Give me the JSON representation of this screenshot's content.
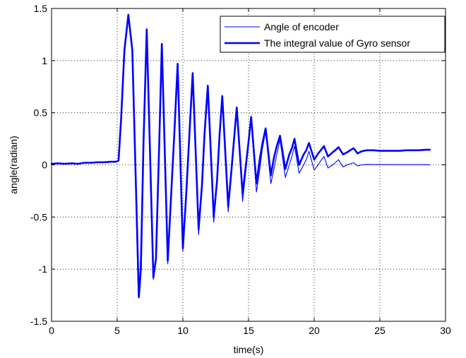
{
  "chart_data": {
    "type": "line",
    "title": "",
    "xlabel": "time(s)",
    "ylabel": "angle(radian)",
    "xlim": [
      0,
      30
    ],
    "ylim": [
      -1.5,
      1.5
    ],
    "xticks": [
      0,
      5,
      10,
      15,
      20,
      25,
      30
    ],
    "yticks": [
      -1.5,
      -1,
      -0.5,
      0,
      0.5,
      1,
      1.5
    ],
    "xtick_labels": [
      "0",
      "5",
      "10",
      "15",
      "20",
      "25",
      "30"
    ],
    "ytick_labels": [
      "-1.5",
      "-1",
      "-0.5",
      "0",
      "0.5",
      "1",
      "1.5"
    ],
    "grid": true,
    "grid_style": "dotted",
    "legend_position": "top-right",
    "series": [
      {
        "name": "Angle of encoder",
        "color": "#0000ff",
        "line": "thin",
        "x": [
          0.0,
          0.5,
          1.0,
          1.5,
          2.0,
          2.5,
          3.0,
          3.5,
          4.0,
          4.5,
          4.9,
          5.1,
          5.3,
          5.55,
          5.85,
          6.15,
          6.6,
          6.75,
          7.0,
          7.25,
          7.75,
          7.95,
          8.2,
          8.4,
          8.85,
          9.1,
          9.35,
          9.6,
          10.0,
          10.25,
          10.5,
          10.75,
          11.2,
          11.45,
          11.65,
          11.9,
          12.35,
          12.6,
          12.8,
          13.0,
          13.45,
          13.7,
          13.9,
          14.1,
          14.55,
          14.8,
          15.0,
          15.2,
          15.6,
          15.85,
          16.05,
          16.3,
          16.7,
          16.95,
          17.15,
          17.4,
          17.8,
          18.1,
          18.3,
          18.5,
          18.85,
          19.2,
          19.4,
          19.6,
          20.0,
          20.3,
          20.5,
          20.75,
          21.05,
          21.4,
          21.6,
          21.85,
          22.2,
          22.5,
          22.75,
          23.0,
          23.3,
          23.6,
          24.0,
          24.5,
          25.0,
          25.5,
          26.0,
          27.0,
          28.0,
          28.8
        ],
        "y": [
          0.01,
          0.015,
          0.01,
          0.015,
          0.01,
          0.02,
          0.02,
          0.025,
          0.025,
          0.03,
          0.03,
          0.04,
          0.4,
          1.05,
          1.42,
          1.1,
          -1.26,
          -1.0,
          0.2,
          1.28,
          -1.1,
          -0.9,
          0.2,
          1.15,
          -0.95,
          -0.3,
          0.3,
          0.97,
          -0.83,
          -0.3,
          0.3,
          0.87,
          -0.67,
          -0.2,
          0.3,
          0.75,
          -0.55,
          -0.15,
          0.25,
          0.65,
          -0.45,
          -0.1,
          0.2,
          0.53,
          -0.35,
          -0.05,
          0.2,
          0.42,
          -0.26,
          -0.05,
          0.15,
          0.32,
          -0.18,
          -0.03,
          0.1,
          0.24,
          -0.12,
          0.0,
          0.08,
          0.18,
          -0.08,
          0.0,
          0.05,
          0.13,
          -0.05,
          0.0,
          0.04,
          0.08,
          -0.03,
          0.0,
          0.02,
          0.05,
          -0.02,
          0.0,
          0.01,
          0.02,
          -0.01,
          0.0,
          0.005,
          0.003,
          0.003,
          0.003,
          0.002,
          0.002,
          0.002,
          0.002
        ]
      },
      {
        "name": "The integral value of Gyro sensor",
        "color": "#0000ff",
        "line": "thick",
        "x": [
          0.0,
          0.5,
          1.0,
          1.5,
          2.0,
          2.5,
          3.0,
          3.5,
          4.0,
          4.5,
          4.9,
          5.1,
          5.3,
          5.55,
          5.85,
          6.15,
          6.65,
          6.8,
          7.0,
          7.25,
          7.75,
          7.95,
          8.2,
          8.4,
          8.85,
          9.1,
          9.35,
          9.6,
          10.0,
          10.25,
          10.5,
          10.75,
          11.2,
          11.45,
          11.65,
          11.9,
          12.35,
          12.6,
          12.8,
          13.0,
          13.45,
          13.7,
          13.9,
          14.1,
          14.55,
          14.8,
          15.0,
          15.2,
          15.6,
          15.85,
          16.05,
          16.3,
          16.7,
          16.95,
          17.15,
          17.4,
          17.8,
          18.1,
          18.3,
          18.5,
          18.85,
          19.2,
          19.4,
          19.6,
          20.0,
          20.3,
          20.5,
          20.75,
          21.05,
          21.4,
          21.6,
          21.85,
          22.2,
          22.5,
          22.75,
          23.0,
          23.3,
          23.6,
          24.0,
          24.5,
          25.0,
          25.5,
          26.0,
          26.5,
          27.0,
          27.5,
          28.0,
          28.5,
          28.8
        ],
        "y": [
          0.01,
          0.015,
          0.01,
          0.015,
          0.01,
          0.02,
          0.02,
          0.025,
          0.025,
          0.03,
          0.03,
          0.04,
          0.45,
          1.1,
          1.44,
          1.1,
          -1.27,
          -1.0,
          0.2,
          1.3,
          -1.08,
          -0.9,
          0.2,
          1.16,
          -0.92,
          -0.3,
          0.3,
          0.97,
          -0.8,
          -0.3,
          0.3,
          0.88,
          -0.62,
          -0.2,
          0.3,
          0.76,
          -0.5,
          -0.15,
          0.3,
          0.66,
          -0.4,
          -0.05,
          0.25,
          0.55,
          -0.28,
          0.0,
          0.22,
          0.46,
          -0.18,
          0.05,
          0.2,
          0.35,
          -0.1,
          0.08,
          0.18,
          0.28,
          -0.04,
          0.1,
          0.16,
          0.25,
          0.0,
          0.1,
          0.14,
          0.21,
          0.05,
          0.11,
          0.14,
          0.18,
          0.08,
          0.12,
          0.14,
          0.17,
          0.1,
          0.12,
          0.14,
          0.16,
          0.11,
          0.13,
          0.14,
          0.14,
          0.135,
          0.135,
          0.135,
          0.135,
          0.14,
          0.14,
          0.14,
          0.145,
          0.145
        ]
      }
    ]
  }
}
